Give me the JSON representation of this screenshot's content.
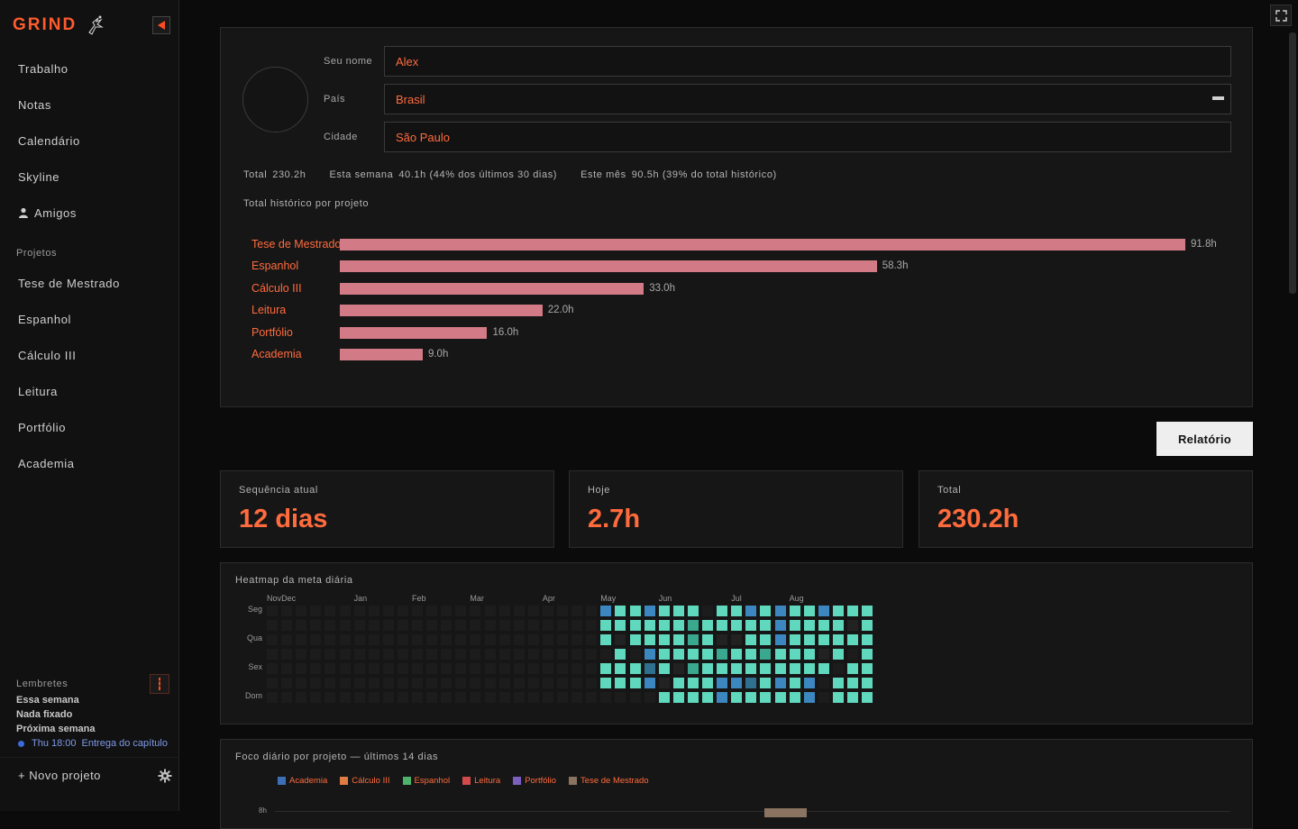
{
  "app": {
    "brand": "GRIND"
  },
  "sidebar": {
    "nav": [
      {
        "label": "Trabalho"
      },
      {
        "label": "Notas"
      },
      {
        "label": "Calendário"
      },
      {
        "label": "Skyline"
      },
      {
        "label": "Amigos",
        "icon": "user-icon"
      }
    ],
    "projects_label": "Projetos",
    "projects": [
      {
        "label": "Tese de Mestrado"
      },
      {
        "label": "Espanhol"
      },
      {
        "label": "Cálculo III"
      },
      {
        "label": "Leitura"
      },
      {
        "label": "Portfólio"
      },
      {
        "label": "Academia"
      }
    ],
    "reminders": {
      "title": "Lembretes",
      "lines": [
        "Essa semana",
        "Nada fixado",
        "Próxima semana"
      ],
      "event": {
        "time": "Thu 18:00",
        "text": "Entrega do capítulo"
      }
    },
    "new_project": "+ Novo projeto"
  },
  "profile": {
    "name_label": "Seu nome",
    "name_value": "Alex",
    "country_label": "País",
    "country_value": "Brasil",
    "city_label": "Cidade",
    "city_value": "São Paulo",
    "stats": {
      "total_label": "Total",
      "total_value": "230.2h",
      "week_label": "Esta semana",
      "week_value": "40.1h (44% dos últimos 30 dias)",
      "month_label": "Este mês",
      "month_value": "90.5h (39% do total histórico)"
    },
    "history_title": "Total histórico por projeto",
    "project_totals": [
      {
        "name": "Tese de Mestrado",
        "hours": 91.8,
        "label": "91.8h"
      },
      {
        "name": "Espanhol",
        "hours": 58.3,
        "label": "58.3h"
      },
      {
        "name": "Cálculo III",
        "hours": 33.0,
        "label": "33.0h"
      },
      {
        "name": "Leitura",
        "hours": 22.0,
        "label": "22.0h"
      },
      {
        "name": "Portfólio",
        "hours": 16.0,
        "label": "16.0h"
      },
      {
        "name": "Academia",
        "hours": 9.0,
        "label": "9.0h"
      }
    ],
    "bar_color": "#d27a85"
  },
  "report_button": "Relatório",
  "cards": [
    {
      "label": "Sequência atual",
      "value": "12 dias"
    },
    {
      "label": "Hoje",
      "value": "2.7h"
    },
    {
      "label": "Total",
      "value": "230.2h"
    }
  ],
  "heatmap": {
    "title": "Heatmap da meta diária",
    "months": [
      {
        "label": "Nov",
        "week": 0
      },
      {
        "label": "Dec",
        "week": 1
      },
      {
        "label": "Jan",
        "week": 6
      },
      {
        "label": "Feb",
        "week": 10
      },
      {
        "label": "Mar",
        "week": 14
      },
      {
        "label": "Apr",
        "week": 19
      },
      {
        "label": "May",
        "week": 23
      },
      {
        "label": "Jun",
        "week": 27
      },
      {
        "label": "Jul",
        "week": 32
      },
      {
        "label": "Aug",
        "week": 36
      }
    ],
    "day_labels": [
      {
        "label": "Seg",
        "row": 0
      },
      {
        "label": "Qua",
        "row": 2
      },
      {
        "label": "Sex",
        "row": 4
      },
      {
        "label": "Dom",
        "row": 6
      }
    ],
    "colors": {
      "0": "#222222",
      "1": "#1c1c1c",
      "2": "#2f6f8f",
      "3": "#3aa78f",
      "4": "#5fd8bd",
      "5": "#3d87c0"
    },
    "weeks": [
      "1111111",
      "1111111",
      "1111111",
      "1111111",
      "1111111",
      "1111111",
      "1111111",
      "1111111",
      "1111111",
      "1111111",
      "1111111",
      "1111111",
      "1111111",
      "1111111",
      "1111111",
      "1111111",
      "1111111",
      "1111111",
      "1111111",
      "1111111",
      "1111111",
      "1111111",
      "1111111",
      "5441441",
      "4404441",
      "4441441",
      "5445251",
      "4444404",
      "4444044",
      "4334344",
      "1444444",
      "4403455",
      "4404454",
      "5444424",
      "4443444",
      "5554454",
      "4444444",
      "4444455",
      "5440411",
      "4444144",
      "4041444",
      "4444444"
    ]
  },
  "focus": {
    "title": "Foco diário por projeto — últimos 14 dias",
    "legend": [
      {
        "name": "Academia",
        "color": "#3d6fb8"
      },
      {
        "name": "Cálculo III",
        "color": "#e07b45"
      },
      {
        "name": "Espanhol",
        "color": "#4fb26a"
      },
      {
        "name": "Leitura",
        "color": "#d24a4a"
      },
      {
        "name": "Portfólio",
        "color": "#7b60c2"
      },
      {
        "name": "Tese de Mestrado",
        "color": "#8a7360"
      }
    ],
    "y_tick": "8h"
  }
}
